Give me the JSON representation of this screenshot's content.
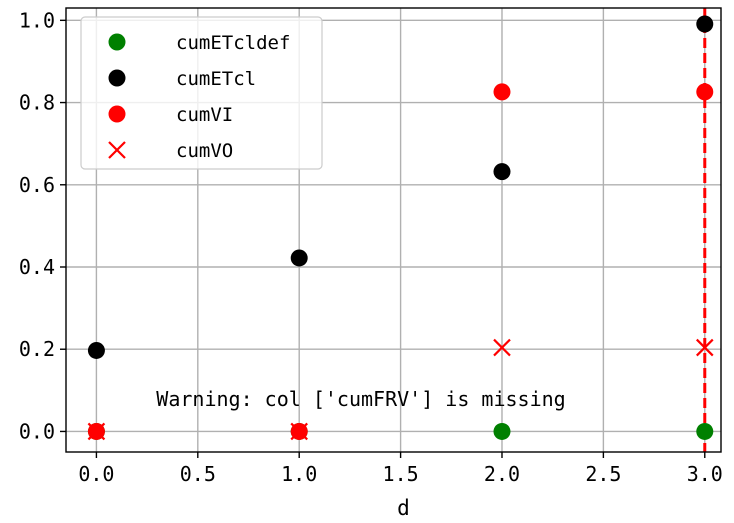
{
  "chart_data": {
    "type": "scatter",
    "title": "",
    "xlabel": "d",
    "ylabel": "",
    "xlim": [
      -0.15,
      3.08
    ],
    "ylim": [
      -0.05,
      1.03
    ],
    "grid": true,
    "legend_position": "top-left",
    "x_ticks": [
      "0.0",
      "0.5",
      "1.0",
      "1.5",
      "2.0",
      "2.5",
      "3.0"
    ],
    "y_ticks": [
      "0.0",
      "0.2",
      "0.4",
      "0.6",
      "0.8",
      "1.0"
    ],
    "series": [
      {
        "name": "cumETcldef",
        "marker": "circle",
        "color": "#008000",
        "points": [
          {
            "x": 0,
            "y": 0.0
          },
          {
            "x": 1,
            "y": 0.0
          },
          {
            "x": 2,
            "y": 0.0
          },
          {
            "x": 3,
            "y": 0.0
          }
        ]
      },
      {
        "name": "cumETcl",
        "marker": "circle",
        "color": "#000000",
        "points": [
          {
            "x": 0,
            "y": 0.197
          },
          {
            "x": 1,
            "y": 0.422
          },
          {
            "x": 2,
            "y": 0.632
          },
          {
            "x": 3,
            "y": 0.991
          }
        ]
      },
      {
        "name": "cumVI",
        "marker": "circle",
        "color": "#ff0000",
        "points": [
          {
            "x": 0,
            "y": 0.0
          },
          {
            "x": 1,
            "y": 0.0
          },
          {
            "x": 2,
            "y": 0.826
          },
          {
            "x": 3,
            "y": 0.826
          }
        ]
      },
      {
        "name": "cumVO",
        "marker": "x",
        "color": "#ff0000",
        "points": [
          {
            "x": 0,
            "y": 0.0
          },
          {
            "x": 1,
            "y": 0.0
          },
          {
            "x": 2,
            "y": 0.204
          },
          {
            "x": 3,
            "y": 0.204
          }
        ]
      }
    ],
    "vertical_line": {
      "x": 3.0,
      "color": "#ff0000",
      "style": "dashed"
    },
    "annotation": "Warning: col ['cumFRV'] is missing"
  }
}
